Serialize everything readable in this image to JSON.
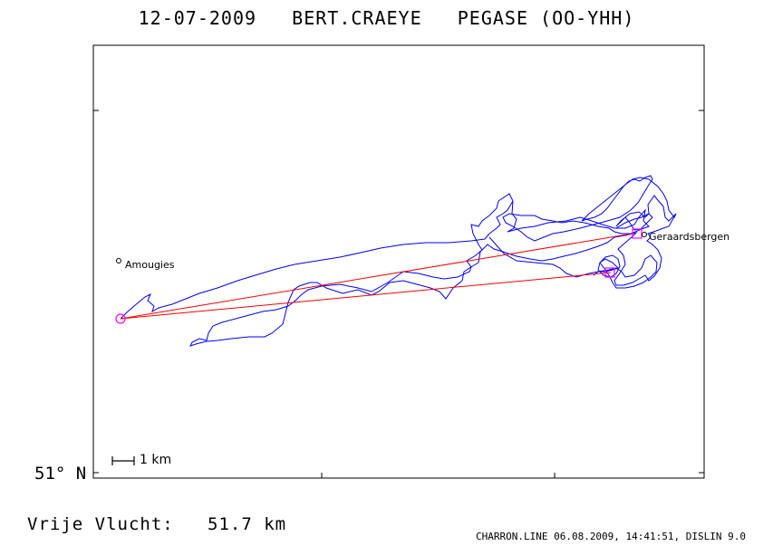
{
  "title": {
    "date": "12-07-2009",
    "pilot": "BERT.CRAEYE",
    "glider": "PEGASE (OO-YHH)"
  },
  "map": {
    "latitude_label": "51° N",
    "scale_label": "1 km",
    "places": [
      {
        "name": "Amougies"
      },
      {
        "name": "Geraardsbergen"
      }
    ],
    "colors": {
      "track": "#0000ff",
      "task": "#ff0000",
      "marker": "#ff00ff",
      "frame": "#000000"
    }
  },
  "stats": {
    "label": "Vrije Vlucht:",
    "distance": "51.7 km"
  },
  "footer": {
    "text": "CHARRON.LINE 06.08.2009, 14:41:51, DISLIN 9.0"
  }
}
